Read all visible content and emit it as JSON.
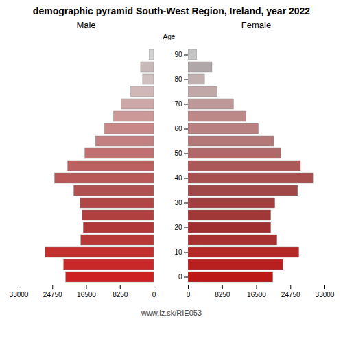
{
  "chart_data": {
    "type": "bar",
    "orientation": "horizontal",
    "title": "demographic pyramid South-West Region, Ireland, year 2022",
    "ylabel": "Age",
    "annotation": "www.iz.sk/RIE053",
    "categories": [
      "0",
      null,
      "10",
      null,
      "20",
      null,
      "30",
      null,
      "40",
      null,
      "50",
      null,
      "60",
      null,
      "70",
      null,
      "80",
      null,
      "90"
    ],
    "series": [
      {
        "name": "Male",
        "colors": [
          "#cd2020",
          "#c82828",
          "#c43030",
          "#b83838",
          "#b03838",
          "#b04040",
          "#b04848",
          "#b05050",
          "#b85858",
          "#bc6060",
          "#c07070",
          "#c48080",
          "#c88888",
          "#cc9898",
          "#cca8a8",
          "#d0b8b8",
          "#d0c0c0",
          "#c8b8b8",
          "#d4d4d4"
        ],
        "values": [
          21500,
          22000,
          26500,
          17800,
          17200,
          17500,
          18000,
          19500,
          24200,
          21000,
          16800,
          14200,
          12000,
          9800,
          8000,
          5600,
          2700,
          3200,
          1100
        ]
      },
      {
        "name": "Female",
        "colors": [
          "#bc1818",
          "#b82020",
          "#b42828",
          "#a83030",
          "#a03030",
          "#a03838",
          "#a04040",
          "#a04848",
          "#a85050",
          "#ac5858",
          "#b06868",
          "#b47878",
          "#b88080",
          "#bc8888",
          "#bc9898",
          "#c0a8a8",
          "#c0b0b0",
          "#b0a8a8",
          "#c4c4c4"
        ],
        "values": [
          20500,
          23000,
          26800,
          21500,
          20000,
          20000,
          21000,
          26500,
          30200,
          27200,
          22500,
          20800,
          17000,
          14000,
          11000,
          7000,
          4000,
          5800,
          2100
        ]
      }
    ],
    "xlim": [
      0,
      33000
    ],
    "xticks": [
      0,
      8250,
      16500,
      24750,
      33000
    ],
    "grid": false
  }
}
